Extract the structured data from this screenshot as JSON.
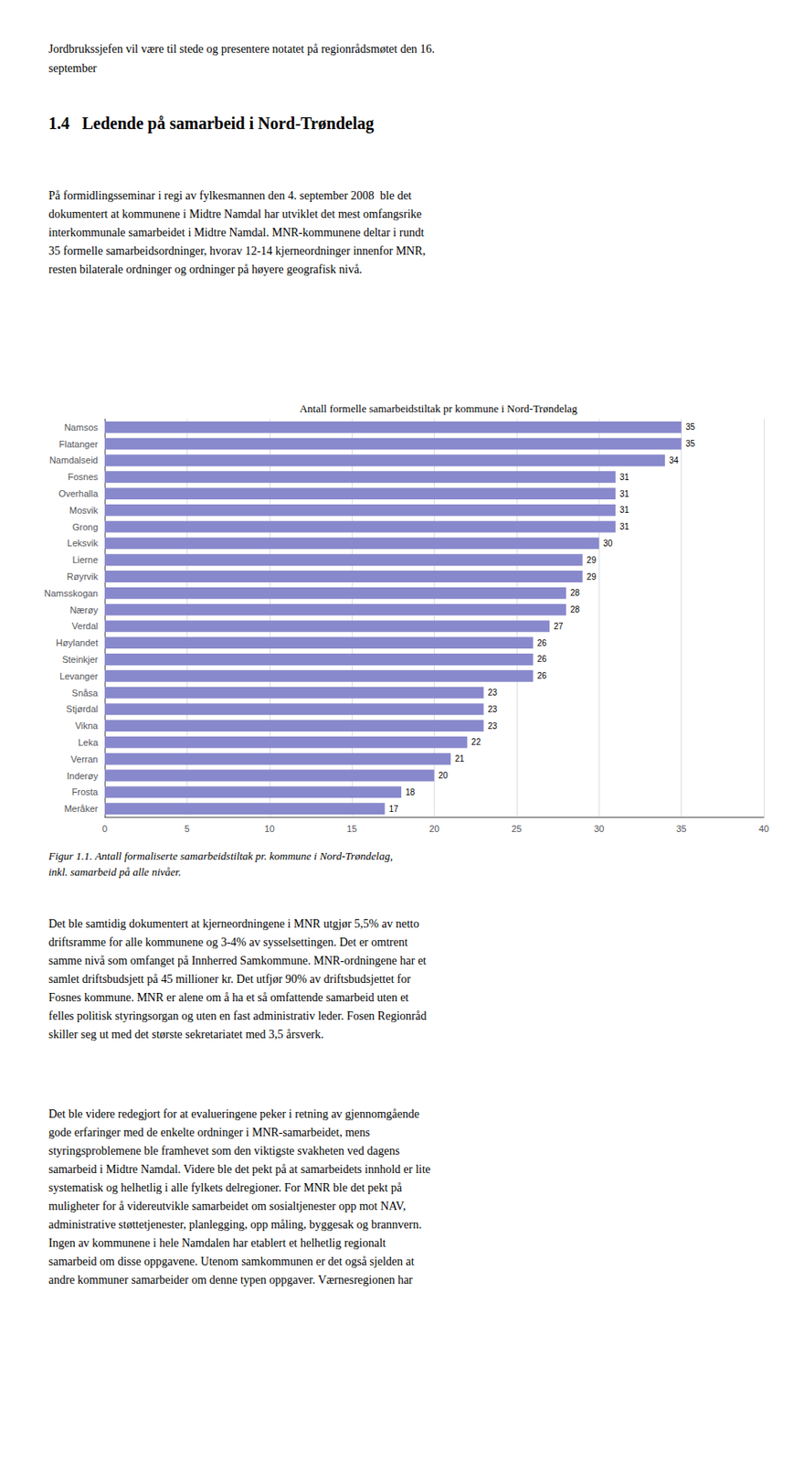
{
  "chart_data": {
    "type": "bar",
    "orientation": "horizontal",
    "title": "Antall formelle samarbeidstiltak pr kommune i Nord-Trøndelag",
    "categories": [
      "Meråker",
      "Frosta",
      "Inderøy",
      "Verran",
      "Leka",
      "Vikna",
      "Stjørdal",
      "Snåsa",
      "Levanger",
      "Steinkjer",
      "Høylandet",
      "Verdal",
      "Nærøy",
      "Namsskogan",
      "Røyrvik",
      "Lierne",
      "Leksvik",
      "Grong",
      "Mosvik",
      "Overhalla",
      "Fosnes",
      "Namdalseid",
      "Flatanger",
      "Namsos"
    ],
    "values": [
      17,
      18,
      20,
      21,
      22,
      23,
      23,
      23,
      26,
      26,
      26,
      27,
      28,
      28,
      29,
      29,
      30,
      31,
      31,
      31,
      31,
      34,
      35,
      35
    ],
    "color": "#8888cc",
    "xlim": [
      0,
      40
    ],
    "xticks": [
      0,
      5,
      10,
      15,
      20,
      25,
      30,
      35,
      40
    ],
    "grid": true,
    "data_labels": true,
    "annotations": [
      "Jordbrukssjefen vil være til stede og presentere notatet på regionrådsmøtet den 16.",
      "september",
      "1.4   Ledende på samarbeid i Nord-Trøndelag",
      "På formidlingsseminar i regi av fylkesmannen den 4. september 2008  ble det\ndokumentert at kommunene i Midtre Namdal har utviklet det mest omfangsrike\ninterkommunale samarbeidet i Midtre Namdal. MNR-kommunene deltar i rundt\n35 formelle samarbeidsordninger, hvorav 12-14 kjerneordninger innenfor MNR,\nresten bilaterale ordninger og ordninger på høyere geografisk nivå.",
      "Figur 1.1. Antall formaliserte samarbeidstiltak pr. kommune i Nord-Trøndelag,\ninkl. samarbeid på alle nivåer.",
      "Det ble samtidig dokumentert at kjerneordningene i MNR utgjør 5,5% av netto\ndriftsramme for alle kommunene og 3-4% av sysselsettingen. Det er omtrent\nsamme nivå som omfanget på Innherred Samkommune. MNR-ordningene har et\nsamlet driftsbudsjett på 45 millioner kr. Det utfjør 90% av driftsbudsjettet for\nFosnes kommune. MNR er alene om å ha et så omfattende samarbeid uten et\nfelles politisk styringsorgan og uten en fast administrativ leder. Fosen Regionråd\nskiller seg ut med det største sekretariatet med 3,5 årsverk.",
      "Det ble videre redegjort for at evalueringene peker i retning av gjennomgående\ngode erfaringer med de enkelte ordninger i MNR-samarbeidet, mens\nstyringsproblemene ble framhevet som den viktigste svakheten ved dagens\nsamarbeid i Midtre Namdal. Videre ble det pekt på at samarbeidets innhold er lite\nsystematisk og helhetlig i alle fylkets delregioner. For MNR ble det pekt på\nmuligheter for å videreutvikle samarbeidet om sosialtjenester opp mot NAV,\nadministrative støttetjenester, planlegging, opp måling, byggesak og brannvern.\nIngen av kommunene i hele Namdalen har etablert et helhetlig regionalt\nsamarbeid om disse oppgavene. Utenom samkommunen er det også sjelden at\nandre kommuner samarbeider om denne typen oppgaver. Værnesregionen har"
    ]
  }
}
